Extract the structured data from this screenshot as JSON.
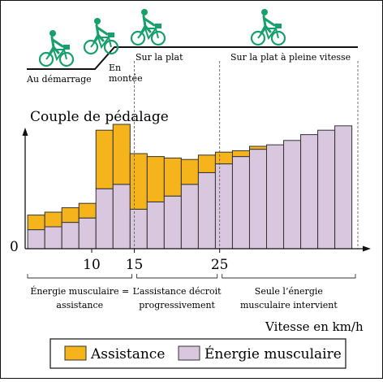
{
  "colors": {
    "assistance": "#F5B41B",
    "muscular": "#D9C6DF",
    "cyclist": "#17A06C",
    "stroke": "#333333"
  },
  "profile": {
    "icons": [
      "cyclist-icon",
      "cyclist-icon",
      "cyclist-icon",
      "cyclist-icon"
    ],
    "labels": {
      "start": "Au démarrage",
      "uphill_line1": "En",
      "uphill_line2": "montée",
      "flat": "Sur la plat",
      "flat_fast": "Sur la plat à pleine vitesse"
    }
  },
  "chart_data": {
    "type": "bar",
    "stacked": true,
    "ylabel": "Couple de pédalage",
    "xlabel": "Vitesse en km/h",
    "y_origin_label": "0",
    "x_ticks": [
      "10",
      "15",
      "25"
    ],
    "x_tick_values": [
      10,
      15,
      25
    ],
    "x": [
      3.5,
      5.5,
      7.5,
      9.5,
      11.5,
      13.5,
      15.5,
      17.5,
      19.5,
      21.5,
      23.5,
      25.5,
      27.5,
      29.5,
      31.5,
      33.5,
      35.5,
      37.5,
      39.5
    ],
    "xlim": [
      2.2,
      41.2
    ],
    "ylim": [
      0,
      100
    ],
    "series": [
      {
        "name": "Énergie musculaire",
        "key": "muscular",
        "values": [
          13,
          15,
          18,
          21,
          41,
          44,
          27,
          32,
          36,
          44,
          52,
          58,
          63,
          68,
          71,
          74,
          78,
          81,
          84
        ]
      },
      {
        "name": "Assistance",
        "key": "assistance",
        "values": [
          10,
          10,
          10,
          10,
          40,
          41,
          38,
          31,
          26,
          17,
          12,
          8,
          4,
          2,
          0,
          0,
          0,
          0,
          0
        ]
      }
    ],
    "phases": [
      {
        "label_line1": "Énergie musculaire =",
        "label_line2": "assistance",
        "from": 2.2,
        "to": 15
      },
      {
        "label_line1": "L’assistance décroit",
        "label_line2": "progressivement",
        "from": 15,
        "to": 25
      },
      {
        "label_line1": "Seule l’énergie",
        "label_line2": "musculaire intervient",
        "from": 25,
        "to": 41.2
      }
    ],
    "legend": [
      {
        "key": "assistance",
        "label": "Assistance"
      },
      {
        "key": "muscular",
        "label": "Énergie musculaire"
      }
    ]
  }
}
